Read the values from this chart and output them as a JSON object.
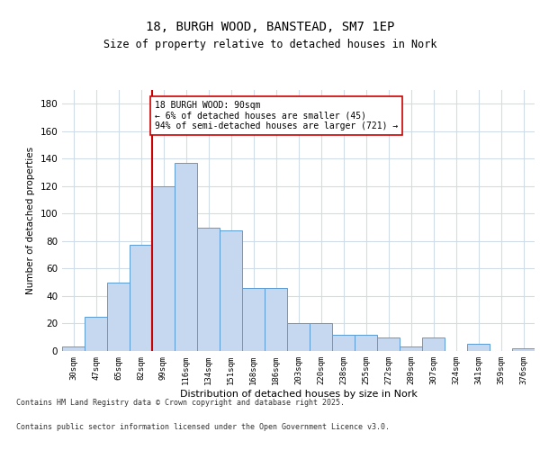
{
  "title1": "18, BURGH WOOD, BANSTEAD, SM7 1EP",
  "title2": "Size of property relative to detached houses in Nork",
  "xlabel": "Distribution of detached houses by size in Nork",
  "ylabel": "Number of detached properties",
  "categories": [
    "30sqm",
    "47sqm",
    "65sqm",
    "82sqm",
    "99sqm",
    "116sqm",
    "134sqm",
    "151sqm",
    "168sqm",
    "186sqm",
    "203sqm",
    "220sqm",
    "238sqm",
    "255sqm",
    "272sqm",
    "289sqm",
    "307sqm",
    "324sqm",
    "341sqm",
    "359sqm",
    "376sqm"
  ],
  "values": [
    3,
    25,
    50,
    77,
    120,
    137,
    90,
    88,
    46,
    46,
    20,
    20,
    12,
    12,
    10,
    3,
    10,
    0,
    5,
    0,
    2
  ],
  "bar_color": "#c5d8f0",
  "bar_edge_color": "#5b9bd5",
  "vline_x": 3.5,
  "vline_color": "#cc0000",
  "annotation_text": "18 BURGH WOOD: 90sqm\n← 6% of detached houses are smaller (45)\n94% of semi-detached houses are larger (721) →",
  "annotation_box_color": "#ffffff",
  "annotation_box_edge": "#cc0000",
  "ylim": [
    0,
    190
  ],
  "yticks": [
    0,
    20,
    40,
    60,
    80,
    100,
    120,
    140,
    160,
    180
  ],
  "bg_color": "#ffffff",
  "grid_color": "#d0dce8",
  "footer1": "Contains HM Land Registry data © Crown copyright and database right 2025.",
  "footer2": "Contains public sector information licensed under the Open Government Licence v3.0."
}
